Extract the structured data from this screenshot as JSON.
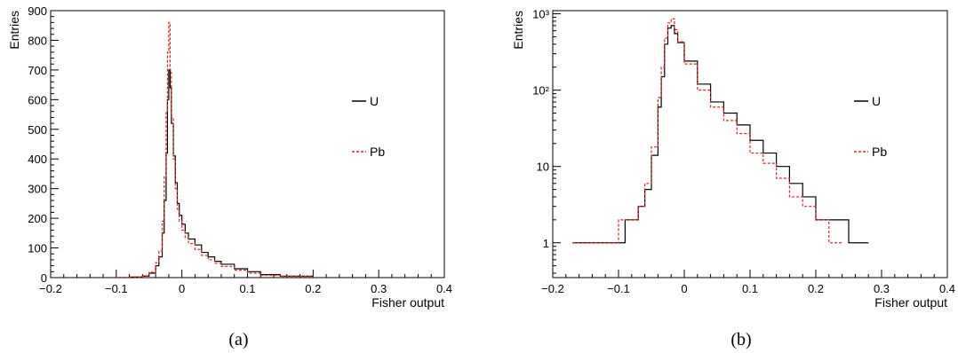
{
  "chart_data": [
    {
      "type": "line",
      "panel": "(a)",
      "xlabel": "Fisher output",
      "ylabel": "Entries",
      "xlim": [
        -0.2,
        0.4
      ],
      "ylim": [
        0,
        900
      ],
      "yscale": "linear",
      "x_ticks": [
        "−0.2",
        "−0.1",
        "0",
        "0.1",
        "0.2",
        "0.3",
        "0.4"
      ],
      "y_ticks": [
        "0",
        "100",
        "200",
        "300",
        "400",
        "500",
        "600",
        "700",
        "800",
        "900"
      ],
      "legend_placement": "right",
      "series": [
        {
          "name": "U",
          "color": "#000000",
          "style": "solid",
          "x": [
            -0.1,
            -0.08,
            -0.06,
            -0.05,
            -0.04,
            -0.035,
            -0.03,
            -0.027,
            -0.024,
            -0.022,
            -0.02,
            -0.018,
            -0.016,
            -0.013,
            -0.01,
            -0.007,
            -0.004,
            0,
            0.005,
            0.01,
            0.02,
            0.03,
            0.04,
            0.05,
            0.06,
            0.08,
            0.1,
            0.12,
            0.15,
            0.2
          ],
          "y": [
            0,
            2,
            5,
            15,
            40,
            70,
            150,
            260,
            420,
            600,
            700,
            640,
            520,
            410,
            320,
            250,
            210,
            180,
            150,
            130,
            110,
            85,
            70,
            55,
            45,
            30,
            20,
            10,
            5,
            1
          ]
        },
        {
          "name": "Pb",
          "color": "#e8201a",
          "style": "dashed",
          "x": [
            -0.1,
            -0.08,
            -0.06,
            -0.05,
            -0.04,
            -0.035,
            -0.03,
            -0.027,
            -0.024,
            -0.022,
            -0.02,
            -0.018,
            -0.016,
            -0.013,
            -0.01,
            -0.007,
            -0.004,
            0,
            0.005,
            0.01,
            0.02,
            0.03,
            0.04,
            0.05,
            0.06,
            0.08,
            0.1,
            0.12,
            0.15,
            0.2
          ],
          "y": [
            0,
            2,
            6,
            18,
            50,
            90,
            190,
            340,
            560,
            760,
            860,
            700,
            540,
            400,
            300,
            230,
            190,
            160,
            135,
            115,
            95,
            75,
            60,
            48,
            38,
            25,
            15,
            8,
            4,
            1
          ]
        }
      ]
    },
    {
      "type": "line",
      "panel": "(b)",
      "xlabel": "Fisher output",
      "ylabel": "Entries",
      "xlim": [
        -0.2,
        0.4
      ],
      "ylim": [
        0.35,
        1100
      ],
      "yscale": "log",
      "x_ticks": [
        "−0.2",
        "−0.1",
        "0",
        "0.1",
        "0.2",
        "0.3",
        "0.4"
      ],
      "y_ticks": [
        "1",
        "10",
        "10²",
        "10³"
      ],
      "legend_placement": "right",
      "series": [
        {
          "name": "U",
          "color": "#000000",
          "style": "solid",
          "x": [
            -0.17,
            -0.15,
            -0.13,
            -0.11,
            -0.09,
            -0.08,
            -0.07,
            -0.06,
            -0.05,
            -0.04,
            -0.035,
            -0.03,
            -0.025,
            -0.02,
            -0.015,
            -0.01,
            0,
            0.02,
            0.04,
            0.06,
            0.08,
            0.1,
            0.12,
            0.14,
            0.16,
            0.18,
            0.2,
            0.22,
            0.25,
            0.28
          ],
          "y": [
            1,
            1,
            1,
            1,
            2,
            2,
            3,
            5,
            14,
            60,
            150,
            400,
            650,
            700,
            550,
            420,
            240,
            120,
            70,
            50,
            35,
            22,
            15,
            10,
            6,
            4,
            2,
            2,
            1,
            1
          ]
        },
        {
          "name": "Pb",
          "color": "#e8201a",
          "style": "dashed",
          "x": [
            -0.17,
            -0.15,
            -0.13,
            -0.11,
            -0.1,
            -0.09,
            -0.08,
            -0.07,
            -0.06,
            -0.05,
            -0.04,
            -0.035,
            -0.03,
            -0.025,
            -0.02,
            -0.015,
            -0.01,
            0,
            0.02,
            0.04,
            0.06,
            0.08,
            0.1,
            0.12,
            0.14,
            0.16,
            0.18,
            0.2,
            0.22,
            0.24
          ],
          "y": [
            1,
            1,
            1,
            1,
            2,
            2,
            2,
            3,
            6,
            18,
            80,
            200,
            480,
            760,
            860,
            620,
            430,
            220,
            100,
            60,
            40,
            27,
            15,
            11,
            7,
            4,
            3,
            2,
            1,
            1
          ]
        }
      ]
    }
  ]
}
